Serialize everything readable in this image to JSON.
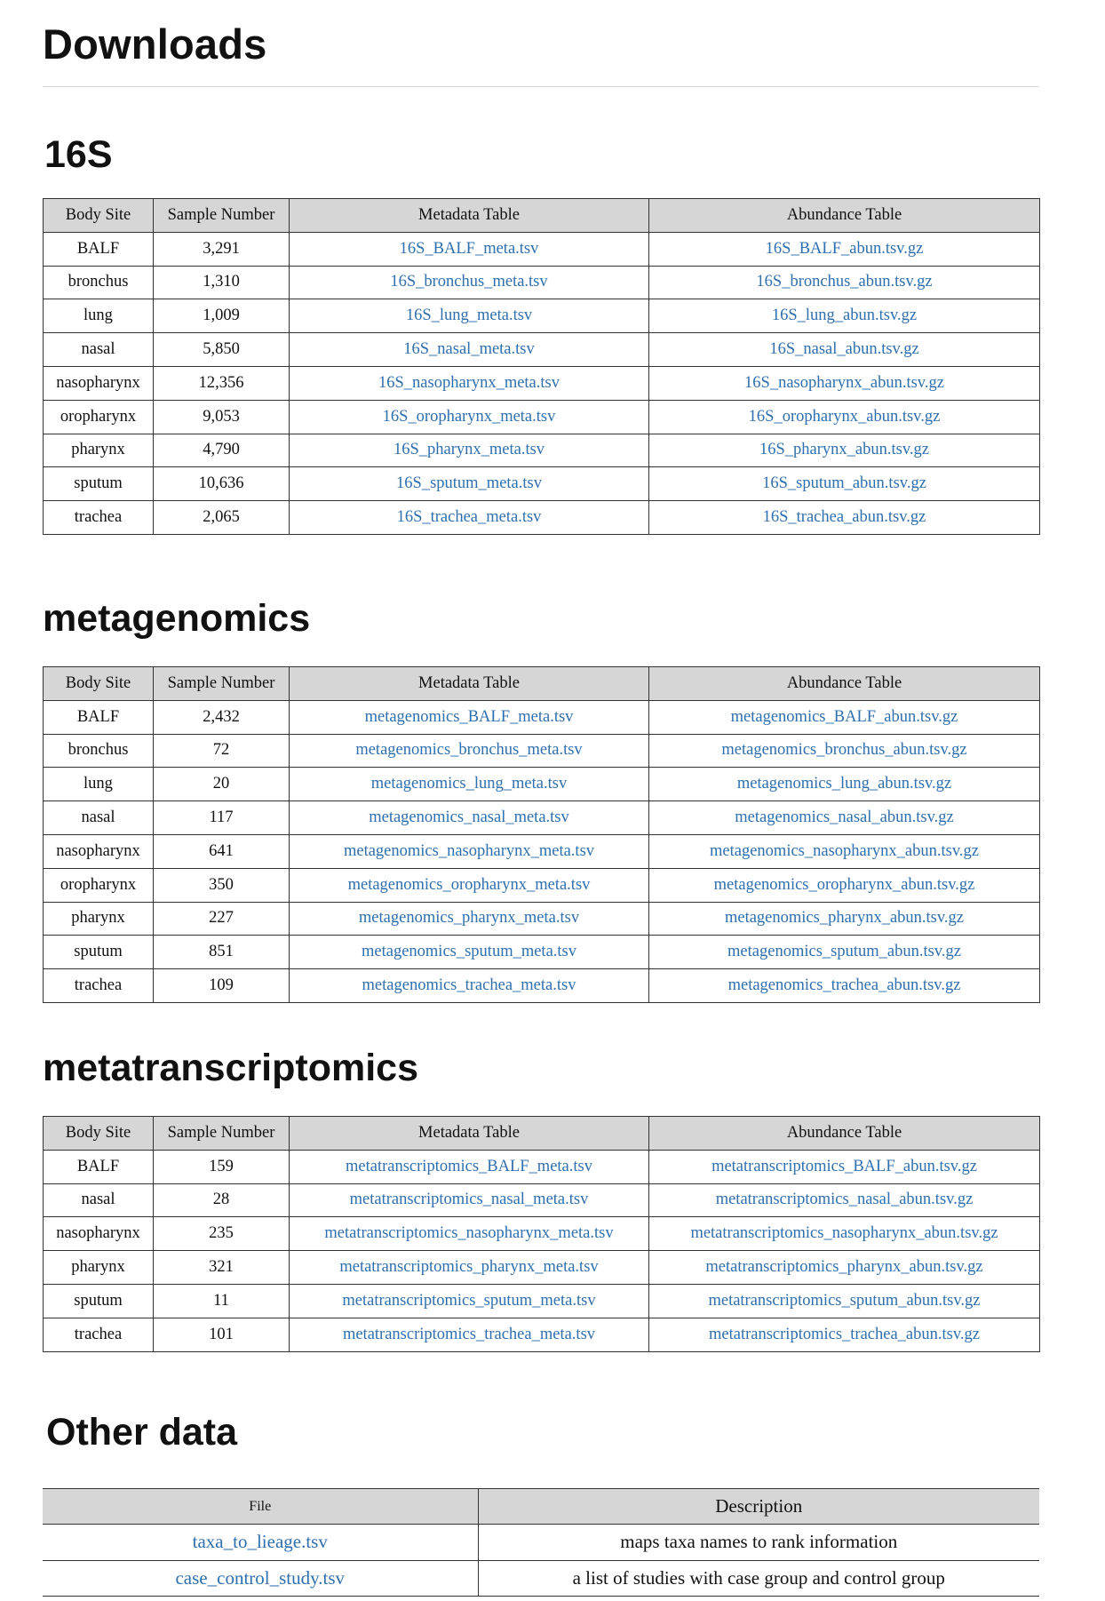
{
  "page_title": "Downloads",
  "columns": {
    "body_site": "Body Site",
    "sample_number": "Sample Number",
    "metadata_table": "Metadata Table",
    "abundance_table": "Abundance Table"
  },
  "sections": [
    {
      "title": "16S",
      "rows": [
        {
          "site": "BALF",
          "count": "3,291",
          "meta": "16S_BALF_meta.tsv",
          "abun": "16S_BALF_abun.tsv.gz"
        },
        {
          "site": "bronchus",
          "count": "1,310",
          "meta": "16S_bronchus_meta.tsv",
          "abun": "16S_bronchus_abun.tsv.gz"
        },
        {
          "site": "lung",
          "count": "1,009",
          "meta": "16S_lung_meta.tsv",
          "abun": "16S_lung_abun.tsv.gz"
        },
        {
          "site": "nasal",
          "count": "5,850",
          "meta": "16S_nasal_meta.tsv",
          "abun": "16S_nasal_abun.tsv.gz"
        },
        {
          "site": "nasopharynx",
          "count": "12,356",
          "meta": "16S_nasopharynx_meta.tsv",
          "abun": "16S_nasopharynx_abun.tsv.gz"
        },
        {
          "site": "oropharynx",
          "count": "9,053",
          "meta": "16S_oropharynx_meta.tsv",
          "abun": "16S_oropharynx_abun.tsv.gz"
        },
        {
          "site": "pharynx",
          "count": "4,790",
          "meta": "16S_pharynx_meta.tsv",
          "abun": "16S_pharynx_abun.tsv.gz"
        },
        {
          "site": "sputum",
          "count": "10,636",
          "meta": "16S_sputum_meta.tsv",
          "abun": "16S_sputum_abun.tsv.gz"
        },
        {
          "site": "trachea",
          "count": "2,065",
          "meta": "16S_trachea_meta.tsv",
          "abun": "16S_trachea_abun.tsv.gz"
        }
      ]
    },
    {
      "title": "metagenomics",
      "rows": [
        {
          "site": "BALF",
          "count": "2,432",
          "meta": "metagenomics_BALF_meta.tsv",
          "abun": "metagenomics_BALF_abun.tsv.gz"
        },
        {
          "site": "bronchus",
          "count": "72",
          "meta": "metagenomics_bronchus_meta.tsv",
          "abun": "metagenomics_bronchus_abun.tsv.gz"
        },
        {
          "site": "lung",
          "count": "20",
          "meta": "metagenomics_lung_meta.tsv",
          "abun": "metagenomics_lung_abun.tsv.gz"
        },
        {
          "site": "nasal",
          "count": "117",
          "meta": "metagenomics_nasal_meta.tsv",
          "abun": "metagenomics_nasal_abun.tsv.gz"
        },
        {
          "site": "nasopharynx",
          "count": "641",
          "meta": "metagenomics_nasopharynx_meta.tsv",
          "abun": "metagenomics_nasopharynx_abun.tsv.gz"
        },
        {
          "site": "oropharynx",
          "count": "350",
          "meta": "metagenomics_oropharynx_meta.tsv",
          "abun": "metagenomics_oropharynx_abun.tsv.gz"
        },
        {
          "site": "pharynx",
          "count": "227",
          "meta": "metagenomics_pharynx_meta.tsv",
          "abun": "metagenomics_pharynx_abun.tsv.gz"
        },
        {
          "site": "sputum",
          "count": "851",
          "meta": "metagenomics_sputum_meta.tsv",
          "abun": "metagenomics_sputum_abun.tsv.gz"
        },
        {
          "site": "trachea",
          "count": "109",
          "meta": "metagenomics_trachea_meta.tsv",
          "abun": "metagenomics_trachea_abun.tsv.gz"
        }
      ]
    },
    {
      "title": "metatranscriptomics",
      "rows": [
        {
          "site": "BALF",
          "count": "159",
          "meta": "metatranscriptomics_BALF_meta.tsv",
          "abun": "metatranscriptomics_BALF_abun.tsv.gz"
        },
        {
          "site": "nasal",
          "count": "28",
          "meta": "metatranscriptomics_nasal_meta.tsv",
          "abun": "metatranscriptomics_nasal_abun.tsv.gz"
        },
        {
          "site": "nasopharynx",
          "count": "235",
          "meta": "metatranscriptomics_nasopharynx_meta.tsv",
          "abun": "metatranscriptomics_nasopharynx_abun.tsv.gz"
        },
        {
          "site": "pharynx",
          "count": "321",
          "meta": "metatranscriptomics_pharynx_meta.tsv",
          "abun": "metatranscriptomics_pharynx_abun.tsv.gz"
        },
        {
          "site": "sputum",
          "count": "11",
          "meta": "metatranscriptomics_sputum_meta.tsv",
          "abun": "metatranscriptomics_sputum_abun.tsv.gz"
        },
        {
          "site": "trachea",
          "count": "101",
          "meta": "metatranscriptomics_trachea_meta.tsv",
          "abun": "metatranscriptomics_trachea_abun.tsv.gz"
        }
      ]
    }
  ],
  "other_data": {
    "title": "Other data",
    "columns": {
      "file": "File",
      "description": "Description"
    },
    "rows": [
      {
        "file": "taxa_to_lieage.tsv",
        "description": "maps taxa names to rank information"
      },
      {
        "file": "case_control_study.tsv",
        "description": "a list of studies with case group and control group"
      }
    ]
  },
  "colors": {
    "link": "#2f6fae",
    "header_bg": "#d6d6d6",
    "border": "#333333"
  }
}
